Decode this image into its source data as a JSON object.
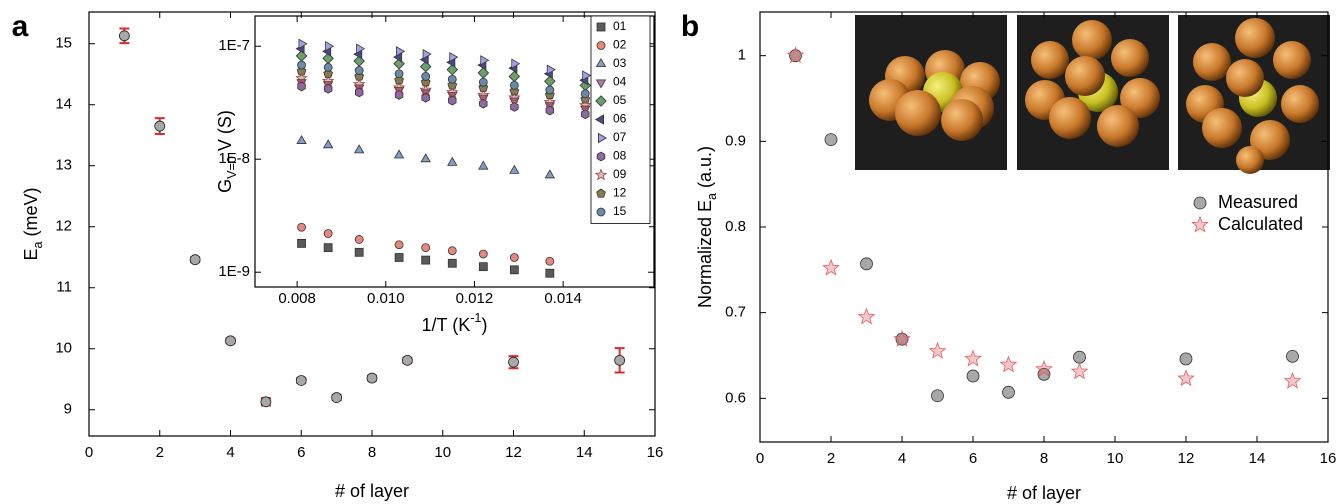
{
  "chart_data": [
    {
      "type": "scatter",
      "panel_label": "a",
      "xlabel": "# of layer",
      "ylabel": [
        "E",
        "a",
        " (meV)"
      ],
      "x": [
        1,
        2,
        3,
        4,
        5,
        6,
        7,
        8,
        9,
        12,
        15
      ],
      "values": [
        15.13,
        13.65,
        11.46,
        10.13,
        9.13,
        9.48,
        9.2,
        9.52,
        9.81,
        9.78,
        9.81
      ],
      "errors": [
        0.12,
        0.13,
        0.04,
        0.04,
        0.06,
        0.04,
        0.04,
        0.04,
        0.04,
        0.1,
        0.2
      ],
      "color": "#a8a8a8",
      "error_color": "#e02828",
      "xlim": [
        0,
        16
      ],
      "ylim": [
        8.57,
        15.52
      ],
      "xticks": [
        0,
        2,
        4,
        6,
        8,
        10,
        12,
        14,
        16
      ],
      "yticks": [
        9,
        10,
        11,
        12,
        13,
        14,
        15
      ]
    },
    {
      "type": "scatter",
      "log_y": true,
      "xlabel": [
        "1/T (K",
        "-1",
        ")"
      ],
      "ylabel": [
        "G",
        "V=0",
        " V (S)"
      ],
      "x": [
        0.0081,
        0.0087,
        0.0094,
        0.0103,
        0.0109,
        0.0115,
        0.0122,
        0.0129,
        0.0137,
        0.0145
      ],
      "xlim": [
        0.00705,
        0.01605
      ],
      "ylim": [
        7.4e-10,
        1.85e-07
      ],
      "xticks": [
        0.008,
        {
          "value": 0.01,
          "label": "0.010"
        },
        0.012,
        0.014
      ],
      "yticks": [
        {
          "value": 1e-09,
          "label": "1E-9"
        },
        {
          "value": 1e-08,
          "label": "1E-8"
        },
        {
          "value": 1e-07,
          "label": "1E-7"
        }
      ],
      "legend": "top-right",
      "series": [
        {
          "name": "01",
          "marker": "square",
          "color": "#5a5a5a",
          "values": [
            1.8e-09,
            1.65e-09,
            1.5e-09,
            1.35e-09,
            1.28e-09,
            1.2e-09,
            1.12e-09,
            1.05e-09,
            9.8e-10,
            null
          ]
        },
        {
          "name": "02",
          "marker": "circle",
          "color": "#e8877c",
          "values": [
            2.5e-09,
            2.2e-09,
            1.95e-09,
            1.75e-09,
            1.65e-09,
            1.55e-09,
            1.45e-09,
            1.35e-09,
            1.25e-09,
            null
          ]
        },
        {
          "name": "03",
          "marker": "triangle-up",
          "color": "#7f9fc8",
          "values": [
            1.45e-08,
            1.33e-08,
            1.2e-08,
            1.08e-08,
            1e-08,
            9.3e-09,
            8.6e-09,
            7.9e-09,
            7.2e-09,
            null
          ]
        },
        {
          "name": "04",
          "marker": "triangle-down",
          "color": "#b07da8",
          "values": [
            4.8e-08,
            4.6e-08,
            4.3e-08,
            4.1e-08,
            3.9e-08,
            3.7e-08,
            3.5e-08,
            3.3e-08,
            3e-08,
            2.8e-08
          ]
        },
        {
          "name": "05",
          "marker": "diamond",
          "color": "#6aa06a",
          "values": [
            8.2e-08,
            7.8e-08,
            7.4e-08,
            7e-08,
            6.6e-08,
            6.2e-08,
            5.8e-08,
            5.4e-08,
            4.9e-08,
            4.5e-08
          ]
        },
        {
          "name": "06",
          "marker": "triangle-left",
          "color": "#4a4a8a",
          "values": [
            9.5e-08,
            9e-08,
            8.5e-08,
            8e-08,
            7.6e-08,
            7.2e-08,
            6.8e-08,
            6.4e-08,
            5.7e-08,
            5e-08
          ]
        },
        {
          "name": "07",
          "marker": "triangle-right",
          "color": "#a0a0e8",
          "values": [
            1.05e-07,
            1e-07,
            9.5e-08,
            9e-08,
            8.5e-08,
            8e-08,
            7.5e-08,
            7e-08,
            6.2e-08,
            5.5e-08
          ]
        },
        {
          "name": "08",
          "marker": "hexagon",
          "color": "#8e6aa0",
          "values": [
            4.4e-08,
            4.2e-08,
            3.9e-08,
            3.7e-08,
            3.5e-08,
            3.3e-08,
            3.1e-08,
            2.9e-08,
            2.7e-08,
            2.5e-08
          ]
        },
        {
          "name": "09",
          "marker": "star",
          "color": "#a04040",
          "values": [
            5.2e-08,
            4.9e-08,
            4.6e-08,
            4.3e-08,
            4.1e-08,
            3.9e-08,
            3.7e-08,
            3.5e-08,
            3.2e-08,
            3e-08
          ]
        },
        {
          "name": "12",
          "marker": "pentagon",
          "color": "#8a7a50",
          "values": [
            6e-08,
            5.7e-08,
            5.4e-08,
            5e-08,
            4.8e-08,
            4.5e-08,
            4.3e-08,
            4e-08,
            3.7e-08,
            3.4e-08
          ]
        },
        {
          "name": "15",
          "marker": "circle",
          "color": "#6a8aa8",
          "values": [
            6.8e-08,
            6.5e-08,
            6.1e-08,
            5.7e-08,
            5.4e-08,
            5.1e-08,
            4.8e-08,
            4.5e-08,
            4.1e-08,
            3.8e-08
          ]
        }
      ]
    },
    {
      "type": "scatter",
      "panel_label": "b",
      "xlabel": "# of layer",
      "ylabel": [
        "Normalized E",
        "a",
        " (a.u.)"
      ],
      "x": [
        1,
        2,
        3,
        4,
        5,
        6,
        7,
        8,
        9,
        12,
        15
      ],
      "xlim": [
        0,
        16
      ],
      "ylim": [
        0.549,
        1.051
      ],
      "xticks": [
        0,
        2,
        4,
        6,
        8,
        10,
        12,
        14,
        16
      ],
      "yticks": [
        0.6,
        0.7,
        0.8,
        0.9,
        1.0
      ],
      "legend": "right",
      "series": [
        {
          "name": "Measured",
          "marker": "circle",
          "color": "#a8a8a8",
          "values": [
            1.0,
            0.902,
            0.757,
            0.669,
            0.603,
            0.626,
            0.607,
            0.628,
            0.648,
            0.646,
            0.649
          ]
        },
        {
          "name": "Calculated",
          "marker": "star",
          "color": "#e06060",
          "values": [
            1.0,
            0.752,
            0.695,
            0.669,
            0.655,
            0.646,
            0.639,
            0.634,
            0.631,
            0.623,
            0.62
          ]
        }
      ]
    }
  ]
}
